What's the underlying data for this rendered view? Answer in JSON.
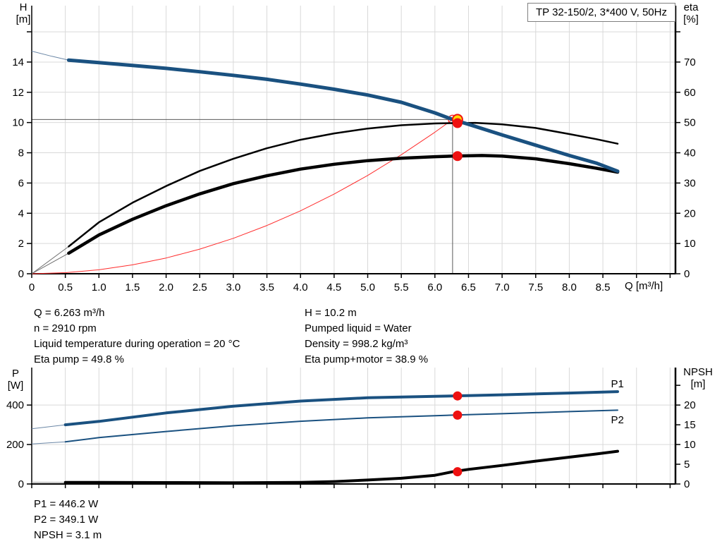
{
  "chart_data": [
    {
      "id": "qh-eta-chart",
      "type": "line",
      "title": "TP 32-150/2, 3*400 V, 50Hz",
      "x_axis": {
        "label": "Q [m³/h]",
        "min": 0,
        "max": 9.58,
        "tick_step": 0.5,
        "ticks": [
          0,
          0.5,
          1.0,
          1.5,
          2.0,
          2.5,
          3.0,
          3.5,
          4.0,
          4.5,
          5.0,
          5.5,
          6.0,
          6.5,
          7.0,
          7.5,
          8.0,
          8.5
        ]
      },
      "y_left": {
        "label": "H",
        "unit": "[m]",
        "min": 0,
        "max": 17.73,
        "tick_step": 2,
        "ticks": [
          0,
          2,
          4,
          6,
          8,
          10,
          12,
          14
        ]
      },
      "y_right": {
        "label": "eta",
        "unit": "[%]",
        "min": 0,
        "max": 88.65,
        "tick_step": 10,
        "ticks": [
          0,
          10,
          20,
          30,
          40,
          50,
          60,
          70
        ]
      },
      "grid": true,
      "series": [
        {
          "name": "system-curve",
          "axis": "left",
          "color": "#ff2d2d",
          "width": 1,
          "end_marker": "open-circle",
          "points": [
            [
              0,
              0
            ],
            [
              0.5,
              0.07
            ],
            [
              1,
              0.26
            ],
            [
              1.5,
              0.59
            ],
            [
              2,
              1.04
            ],
            [
              2.5,
              1.63
            ],
            [
              3,
              2.34
            ],
            [
              3.5,
              3.19
            ],
            [
              4,
              4.16
            ],
            [
              4.5,
              5.27
            ],
            [
              5,
              6.5
            ],
            [
              5.5,
              7.87
            ],
            [
              6,
              9.36
            ],
            [
              6.263,
              10.2
            ]
          ]
        },
        {
          "name": "eta-pump",
          "axis": "right",
          "color": "#000000",
          "width": 2.5,
          "thin_until": 0.55,
          "thin_color": "#6e6e6e",
          "points": [
            [
              0,
              0
            ],
            [
              0.55,
              9
            ],
            [
              1,
              17
            ],
            [
              1.5,
              23.5
            ],
            [
              2,
              29
            ],
            [
              2.5,
              34
            ],
            [
              3,
              38
            ],
            [
              3.5,
              41.5
            ],
            [
              4,
              44.3
            ],
            [
              4.5,
              46.4
            ],
            [
              5,
              48
            ],
            [
              5.5,
              49.1
            ],
            [
              6,
              49.7
            ],
            [
              6.263,
              49.8
            ],
            [
              6.6,
              49.9
            ],
            [
              7,
              49.4
            ],
            [
              7.5,
              48.2
            ],
            [
              8,
              46.2
            ],
            [
              8.4,
              44.5
            ],
            [
              8.72,
              43
            ]
          ]
        },
        {
          "name": "eta-pump-motor",
          "axis": "right",
          "color": "#000000",
          "width": 4.5,
          "thin_until": 0.55,
          "thin_color": "#6e6e6e",
          "points": [
            [
              0,
              0
            ],
            [
              0.55,
              6.8
            ],
            [
              1,
              12.8
            ],
            [
              1.5,
              18
            ],
            [
              2,
              22.5
            ],
            [
              2.5,
              26.4
            ],
            [
              3,
              29.8
            ],
            [
              3.5,
              32.4
            ],
            [
              4,
              34.6
            ],
            [
              4.5,
              36.2
            ],
            [
              5,
              37.4
            ],
            [
              5.5,
              38.2
            ],
            [
              6,
              38.7
            ],
            [
              6.263,
              38.9
            ],
            [
              6.7,
              39.1
            ],
            [
              7,
              38.9
            ],
            [
              7.5,
              38
            ],
            [
              8,
              36.4
            ],
            [
              8.4,
              34.9
            ],
            [
              8.72,
              33.6
            ]
          ]
        },
        {
          "name": "pump-curve",
          "axis": "left",
          "color": "#1a5180",
          "width": 5,
          "thin_until": 0.55,
          "thin_color": "#6b87a6",
          "points": [
            [
              0,
              14.72
            ],
            [
              0.3,
              14.38
            ],
            [
              0.55,
              14.13
            ],
            [
              1,
              13.96
            ],
            [
              1.5,
              13.78
            ],
            [
              2,
              13.58
            ],
            [
              2.5,
              13.36
            ],
            [
              3,
              13.12
            ],
            [
              3.5,
              12.86
            ],
            [
              4,
              12.54
            ],
            [
              4.5,
              12.2
            ],
            [
              5,
              11.82
            ],
            [
              5.5,
              11.34
            ],
            [
              6,
              10.64
            ],
            [
              6.263,
              10.2
            ],
            [
              6.5,
              9.88
            ],
            [
              7,
              9.18
            ],
            [
              7.5,
              8.5
            ],
            [
              8,
              7.82
            ],
            [
              8.4,
              7.32
            ],
            [
              8.72,
              6.78
            ]
          ]
        }
      ],
      "crosshair": {
        "q": 6.263,
        "value": 10.2,
        "axis": "left"
      },
      "markers": [
        {
          "name": "duty-point-head",
          "q": 6.263,
          "value": 10.2,
          "axis": "left",
          "r": 7,
          "dx": 7,
          "fill": "#ffd900",
          "stroke": "#ee1111",
          "stroke_width": 2
        },
        {
          "name": "duty-point-eta-pump",
          "q": 6.263,
          "value": 49.8,
          "axis": "right",
          "r": 6.5,
          "dx": 7,
          "fill": "#ee1111",
          "stroke": "#ee1111",
          "stroke_width": 1
        },
        {
          "name": "duty-point-eta-pump-motor",
          "q": 6.263,
          "value": 38.9,
          "axis": "right",
          "r": 6.5,
          "dx": 7,
          "fill": "#ee1111",
          "stroke": "#ee1111",
          "stroke_width": 1
        }
      ],
      "annotations": []
    },
    {
      "id": "power-npsh-chart",
      "type": "line",
      "title": "",
      "x_axis": {
        "label": "",
        "min": 0,
        "max": 9.58,
        "tick_step": 0.5,
        "ticks": []
      },
      "y_left": {
        "label": "P",
        "unit": "[W]",
        "min": 0,
        "max": 590,
        "tick_step": 200,
        "ticks": [
          0,
          200,
          400
        ]
      },
      "y_right": {
        "label": "NPSH",
        "unit": "[m]",
        "min": 0,
        "max": 29.5,
        "tick_step": 5,
        "ticks": [
          0,
          5,
          10,
          15,
          20
        ]
      },
      "grid": true,
      "series": [
        {
          "name": "npsh-curve",
          "axis": "right",
          "color": "#000000",
          "width": 4,
          "thin_until": 0.5,
          "thin_color": "#9a9a9a",
          "points": [
            [
              0,
              0.45
            ],
            [
              0.5,
              0.42
            ],
            [
              1,
              0.4
            ],
            [
              2,
              0.35
            ],
            [
              3,
              0.3
            ],
            [
              4,
              0.4
            ],
            [
              4.5,
              0.6
            ],
            [
              5,
              1.0
            ],
            [
              5.5,
              1.45
            ],
            [
              6,
              2.2
            ],
            [
              6.263,
              3.1
            ],
            [
              6.5,
              3.7
            ],
            [
              7,
              4.7
            ],
            [
              7.5,
              5.8
            ],
            [
              8,
              6.8
            ],
            [
              8.4,
              7.6
            ],
            [
              8.72,
              8.3
            ]
          ]
        },
        {
          "name": "p2-power-curve",
          "axis": "left",
          "color": "#1a5180",
          "width": 2,
          "thin_until": 0.5,
          "thin_color": "#6b87a6",
          "points": [
            [
              0,
              203
            ],
            [
              0.5,
              214
            ],
            [
              1,
              235
            ],
            [
              2,
              266
            ],
            [
              3,
              295
            ],
            [
              4,
              318
            ],
            [
              5,
              335
            ],
            [
              6,
              346
            ],
            [
              6.263,
              349.1
            ],
            [
              7,
              356
            ],
            [
              8,
              367
            ],
            [
              8.72,
              374
            ]
          ]
        },
        {
          "name": "p1-power-curve",
          "axis": "left",
          "color": "#1a5180",
          "width": 4,
          "thin_until": 0.5,
          "thin_color": "#6b87a6",
          "points": [
            [
              0,
              280
            ],
            [
              0.5,
              300
            ],
            [
              1,
              317
            ],
            [
              2,
              360
            ],
            [
              3,
              394
            ],
            [
              4,
              420
            ],
            [
              5,
              437
            ],
            [
              6,
              444
            ],
            [
              6.263,
              446.2
            ],
            [
              7,
              452
            ],
            [
              8,
              461
            ],
            [
              8.72,
              468
            ]
          ]
        }
      ],
      "crosshair": null,
      "markers": [
        {
          "name": "duty-point-p1",
          "q": 6.263,
          "value": 446.2,
          "axis": "left",
          "r": 6,
          "dx": 7,
          "fill": "#ee1111",
          "stroke": "#ee1111",
          "stroke_width": 1
        },
        {
          "name": "duty-point-p2",
          "q": 6.263,
          "value": 349.1,
          "axis": "left",
          "r": 6,
          "dx": 7,
          "fill": "#ee1111",
          "stroke": "#ee1111",
          "stroke_width": 1
        },
        {
          "name": "duty-point-npsh",
          "q": 6.263,
          "value": 3.1,
          "axis": "right",
          "r": 6,
          "dx": 7,
          "fill": "#ee1111",
          "stroke": "#ee1111",
          "stroke_width": 1
        }
      ],
      "annotations": [
        {
          "text": "P1",
          "q": 8.62,
          "value": 490,
          "axis": "left",
          "color": "#1a5180"
        },
        {
          "text": "P2",
          "q": 8.62,
          "value": 308,
          "axis": "left",
          "color": "#1a5180"
        }
      ]
    }
  ],
  "info_top_left": {
    "lines": [
      "Q = 6.263 m³/h",
      "n = 2910 rpm",
      "Liquid temperature during operation = 20 °C",
      "Eta pump = 49.8 %"
    ]
  },
  "info_top_right": {
    "lines": [
      "H = 10.2 m",
      "Pumped liquid = Water",
      "Density = 998.2 kg/m³",
      "Eta pump+motor = 38.9 %"
    ]
  },
  "info_bottom": {
    "lines": [
      "P1 = 446.2 W",
      "P2 = 349.1 W",
      "NPSH = 3.1 m"
    ]
  },
  "colors": {
    "curve_blue": "#1a5180",
    "marker_red": "#ee1111",
    "marker_yellow": "#ffd900",
    "system_curve_red": "#ff2d2d",
    "gridline": "#d9d9d9",
    "crosshair": "#595959"
  }
}
